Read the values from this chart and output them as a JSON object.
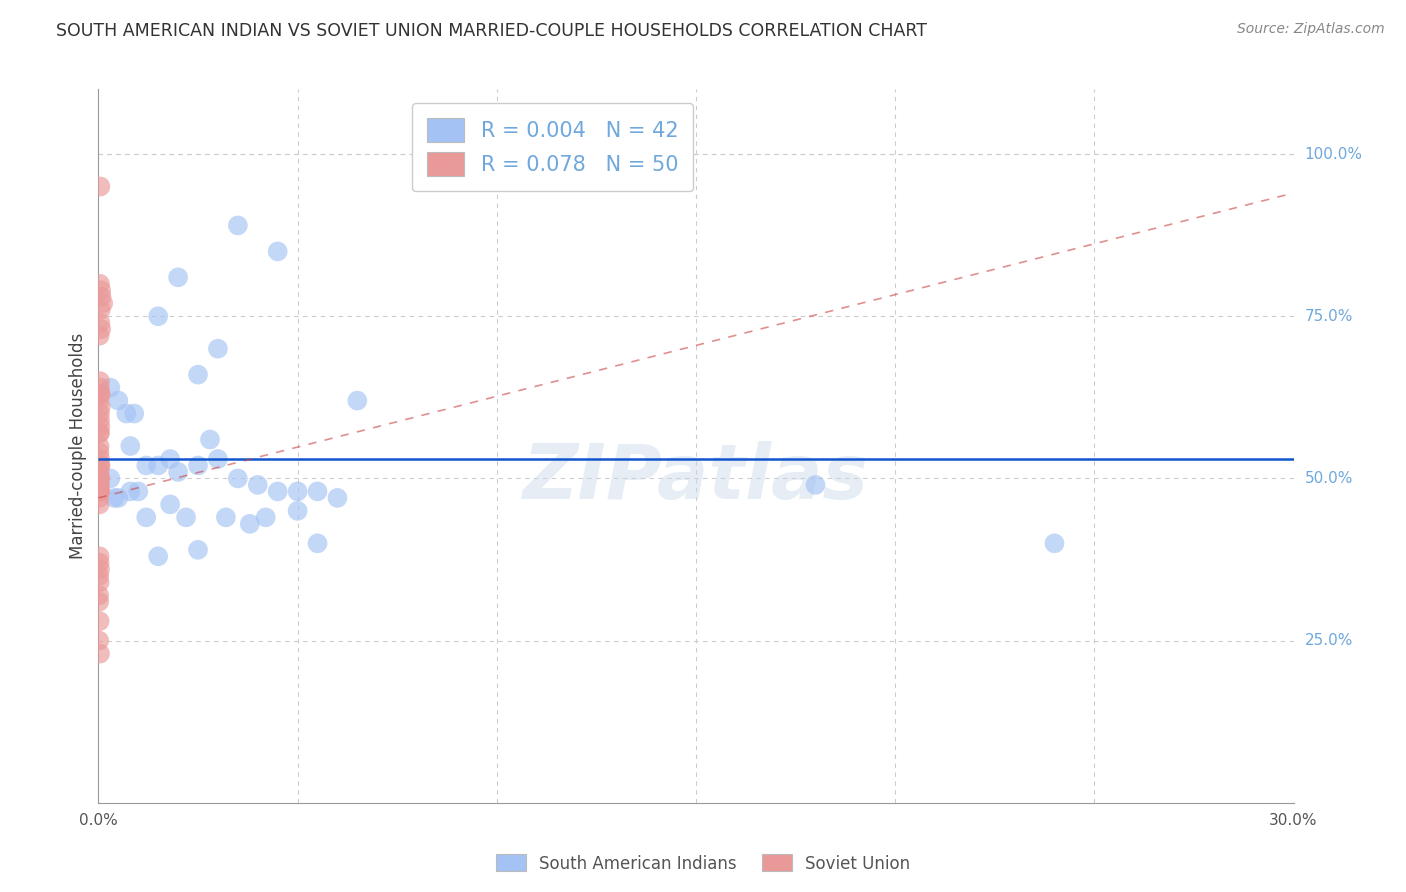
{
  "title": "SOUTH AMERICAN INDIAN VS SOVIET UNION MARRIED-COUPLE HOUSEHOLDS CORRELATION CHART",
  "source": "Source: ZipAtlas.com",
  "ylabel": "Married-couple Households",
  "ytick_values": [
    25,
    50,
    75,
    100
  ],
  "xlim": [
    0,
    30
  ],
  "ylim": [
    0,
    110
  ],
  "ymax_display": 100,
  "legend_blue_R": 0.004,
  "legend_blue_N": 42,
  "legend_pink_R": 0.078,
  "legend_pink_N": 50,
  "blue_color": "#a4c2f4",
  "pink_color": "#ea9999",
  "trend_blue_color": "#1155cc",
  "trend_pink_color": "#cc4444",
  "watermark": "ZIPatlas",
  "blue_dots": [
    [
      0.3,
      64
    ],
    [
      0.5,
      62
    ],
    [
      0.7,
      60
    ],
    [
      0.9,
      60
    ],
    [
      1.5,
      75
    ],
    [
      2.0,
      81
    ],
    [
      3.5,
      89
    ],
    [
      4.5,
      85
    ],
    [
      3.0,
      70
    ],
    [
      2.5,
      66
    ],
    [
      2.8,
      56
    ],
    [
      1.8,
      53
    ],
    [
      1.2,
      52
    ],
    [
      1.5,
      52
    ],
    [
      2.0,
      51
    ],
    [
      2.5,
      52
    ],
    [
      3.0,
      53
    ],
    [
      3.5,
      50
    ],
    [
      4.0,
      49
    ],
    [
      4.5,
      48
    ],
    [
      5.0,
      48
    ],
    [
      5.5,
      48
    ],
    [
      6.0,
      47
    ],
    [
      0.8,
      48
    ],
    [
      1.0,
      48
    ],
    [
      0.5,
      47
    ],
    [
      0.4,
      47
    ],
    [
      1.2,
      44
    ],
    [
      2.2,
      44
    ],
    [
      3.2,
      44
    ],
    [
      4.2,
      44
    ],
    [
      5.0,
      45
    ],
    [
      6.5,
      62
    ],
    [
      18.0,
      49
    ],
    [
      24.0,
      40
    ],
    [
      1.5,
      38
    ],
    [
      2.5,
      39
    ],
    [
      3.8,
      43
    ],
    [
      5.5,
      40
    ],
    [
      0.3,
      50
    ],
    [
      0.8,
      55
    ],
    [
      1.8,
      46
    ]
  ],
  "pink_dots": [
    [
      0.05,
      95
    ],
    [
      0.04,
      80
    ],
    [
      0.07,
      79
    ],
    [
      0.08,
      78
    ],
    [
      0.12,
      77
    ],
    [
      0.06,
      76
    ],
    [
      0.05,
      74
    ],
    [
      0.07,
      73
    ],
    [
      0.03,
      72
    ],
    [
      0.04,
      65
    ],
    [
      0.04,
      64
    ],
    [
      0.06,
      63
    ],
    [
      0.05,
      63
    ],
    [
      0.03,
      62
    ],
    [
      0.06,
      61
    ],
    [
      0.04,
      60
    ],
    [
      0.04,
      59
    ],
    [
      0.05,
      58
    ],
    [
      0.03,
      57
    ],
    [
      0.04,
      57
    ],
    [
      0.03,
      55
    ],
    [
      0.03,
      54
    ],
    [
      0.04,
      53
    ],
    [
      0.05,
      52
    ],
    [
      0.05,
      52
    ],
    [
      0.03,
      51
    ],
    [
      0.02,
      51
    ],
    [
      0.02,
      50
    ],
    [
      0.04,
      50
    ],
    [
      0.05,
      50
    ],
    [
      0.02,
      50
    ],
    [
      0.03,
      50
    ],
    [
      0.02,
      49
    ],
    [
      0.04,
      49
    ],
    [
      0.02,
      49
    ],
    [
      0.03,
      48
    ],
    [
      0.04,
      48
    ],
    [
      0.05,
      48
    ],
    [
      0.02,
      47
    ],
    [
      0.03,
      46
    ],
    [
      0.03,
      38
    ],
    [
      0.03,
      37
    ],
    [
      0.04,
      36
    ],
    [
      0.02,
      35
    ],
    [
      0.03,
      34
    ],
    [
      0.02,
      32
    ],
    [
      0.02,
      31
    ],
    [
      0.03,
      28
    ],
    [
      0.02,
      25
    ],
    [
      0.04,
      23
    ]
  ],
  "blue_hline_y": 53,
  "pink_trend_x0": 0,
  "pink_trend_y0": 47,
  "pink_trend_x1": 30,
  "pink_trend_y1": 94,
  "grid_color": "#cccccc",
  "axis_color": "#999999",
  "title_color": "#333333",
  "right_label_color": "#6fa8dc",
  "source_color": "#888888",
  "dot_size": 200,
  "dot_alpha": 0.65
}
